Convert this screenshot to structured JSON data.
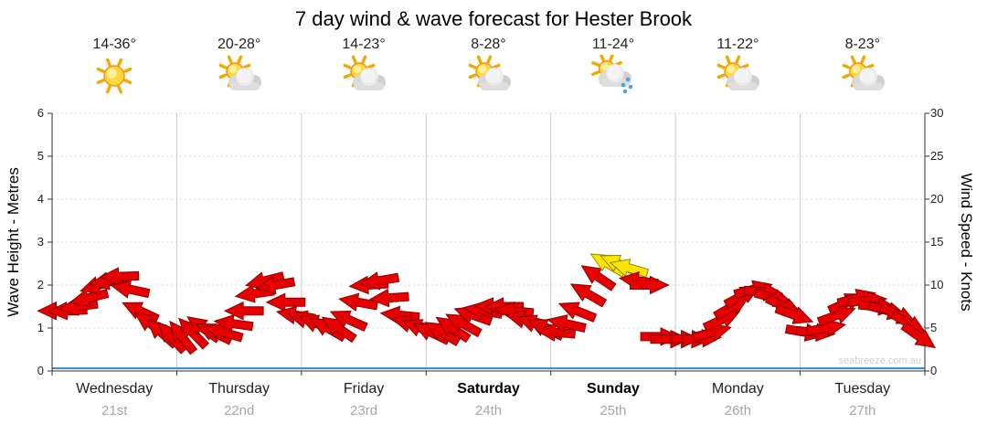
{
  "title": "7 day wind & wave forecast for Hester Brook",
  "watermark": "seabreeze.com.au",
  "axes": {
    "left_label": "Wave Height - Metres",
    "right_label": "Wind Speed - Knots",
    "left_ticks": [
      0,
      1,
      2,
      3,
      4,
      5,
      6
    ],
    "right_ticks": [
      0,
      5,
      10,
      15,
      20,
      25,
      30
    ]
  },
  "chart_data": {
    "type": "scatter",
    "marker": "wind-arrow",
    "title": "7 day wind & wave forecast for Hester Brook",
    "left_axis": {
      "label": "Wave Height - Metres",
      "range": [
        0,
        6
      ]
    },
    "right_axis": {
      "label": "Wind Speed - Knots",
      "range": [
        0,
        30
      ]
    },
    "days": [
      {
        "name": "Wednesday",
        "date": "21st",
        "temp": "14-36°",
        "icon": "sunny",
        "bold": false
      },
      {
        "name": "Thursday",
        "date": "22nd",
        "temp": "20-28°",
        "icon": "partly-cloudy",
        "bold": false
      },
      {
        "name": "Friday",
        "date": "23rd",
        "temp": "14-23°",
        "icon": "partly-cloudy",
        "bold": false
      },
      {
        "name": "Saturday",
        "date": "24th",
        "temp": "8-28°",
        "icon": "partly-cloudy",
        "bold": true
      },
      {
        "name": "Sunday",
        "date": "25th",
        "temp": "11-24°",
        "icon": "rain-showers",
        "bold": true
      },
      {
        "name": "Monday",
        "date": "26th",
        "temp": "11-22°",
        "icon": "partly-cloudy",
        "bold": false
      },
      {
        "name": "Tuesday",
        "date": "27th",
        "temp": "8-23°",
        "icon": "partly-cloudy",
        "bold": false
      }
    ],
    "wave_height_m": 0.06,
    "wave_color": "#3a86c8",
    "colors": {
      "light_wind": "#e60000",
      "light_wind_outline": "#8b0000",
      "moderate_wind": "#ffe400",
      "moderate_wind_outline": "#8b8b00",
      "temp_text": "#222222",
      "grid_vertical": "#cccccc",
      "grid_horizontal": "#dddddd",
      "axis": "#333333"
    },
    "wind_arrows_format": [
      "t_days",
      "knots",
      "rotation_deg",
      "color_key"
    ],
    "wind_arrows": [
      [
        0.04,
        7,
        180,
        "r"
      ],
      [
        0.125,
        7,
        177,
        "r"
      ],
      [
        0.21,
        7.5,
        172,
        "r"
      ],
      [
        0.295,
        8.5,
        166,
        "r"
      ],
      [
        0.375,
        10,
        162,
        "r"
      ],
      [
        0.455,
        10.5,
        168,
        "r"
      ],
      [
        0.54,
        11,
        178,
        "r"
      ],
      [
        0.625,
        9.5,
        192,
        "r"
      ],
      [
        0.705,
        7,
        205,
        "r"
      ],
      [
        0.79,
        5.5,
        215,
        "r"
      ],
      [
        0.875,
        4.5,
        222,
        "r"
      ],
      [
        0.955,
        4,
        228,
        "r"
      ],
      [
        1.04,
        4,
        232,
        "r"
      ],
      [
        1.125,
        4.5,
        226,
        "r"
      ],
      [
        1.21,
        5,
        216,
        "r"
      ],
      [
        1.295,
        4.5,
        206,
        "r"
      ],
      [
        1.375,
        4.5,
        196,
        "r"
      ],
      [
        1.455,
        5.5,
        188,
        "r"
      ],
      [
        1.54,
        7,
        180,
        "r"
      ],
      [
        1.625,
        9,
        172,
        "r"
      ],
      [
        1.705,
        10.5,
        166,
        "r"
      ],
      [
        1.79,
        10,
        170,
        "r"
      ],
      [
        1.875,
        8,
        180,
        "r"
      ],
      [
        1.955,
        6.5,
        190,
        "r"
      ],
      [
        2.04,
        6,
        196,
        "r"
      ],
      [
        2.125,
        5.5,
        202,
        "r"
      ],
      [
        2.21,
        5,
        210,
        "r"
      ],
      [
        2.295,
        5,
        214,
        "r"
      ],
      [
        2.375,
        6,
        204,
        "r"
      ],
      [
        2.455,
        8,
        190,
        "r"
      ],
      [
        2.54,
        10,
        176,
        "r"
      ],
      [
        2.625,
        10.5,
        170,
        "r"
      ],
      [
        2.705,
        8.5,
        176,
        "r"
      ],
      [
        2.79,
        6.5,
        186,
        "r"
      ],
      [
        2.875,
        5.5,
        196,
        "r"
      ],
      [
        2.955,
        5,
        202,
        "r"
      ],
      [
        3.04,
        4.5,
        206,
        "r"
      ],
      [
        3.125,
        4.5,
        211,
        "r"
      ],
      [
        3.21,
        5,
        214,
        "r"
      ],
      [
        3.295,
        5.5,
        209,
        "r"
      ],
      [
        3.375,
        6.5,
        199,
        "r"
      ],
      [
        3.455,
        7,
        190,
        "r"
      ],
      [
        3.54,
        7.5,
        184,
        "r"
      ],
      [
        3.625,
        7.5,
        180,
        "r"
      ],
      [
        3.705,
        7,
        186,
        "r"
      ],
      [
        3.79,
        6,
        194,
        "r"
      ],
      [
        3.875,
        5.5,
        200,
        "r"
      ],
      [
        3.955,
        5,
        206,
        "r"
      ],
      [
        4.04,
        4.5,
        185,
        "r"
      ],
      [
        4.125,
        5.5,
        193,
        "r"
      ],
      [
        4.21,
        7,
        202,
        "r"
      ],
      [
        4.295,
        9,
        210,
        "r"
      ],
      [
        4.375,
        11,
        214,
        "r"
      ],
      [
        4.455,
        12.5,
        210,
        "y"
      ],
      [
        4.54,
        12.5,
        204,
        "y"
      ],
      [
        4.625,
        12,
        196,
        "y"
      ],
      [
        4.705,
        10.5,
        188,
        "r"
      ],
      [
        4.79,
        10,
        0,
        "r"
      ],
      [
        4.875,
        4,
        0,
        "r"
      ],
      [
        4.955,
        3.7,
        0,
        "r"
      ],
      [
        5.04,
        3.7,
        0,
        "r"
      ],
      [
        5.125,
        3.7,
        2,
        "r"
      ],
      [
        5.21,
        3.8,
        357,
        "r"
      ],
      [
        5.295,
        4.5,
        345,
        "r"
      ],
      [
        5.375,
        6,
        335,
        "r"
      ],
      [
        5.455,
        7.5,
        330,
        "r"
      ],
      [
        5.54,
        8.8,
        332,
        "r"
      ],
      [
        5.625,
        9.5,
        345,
        "r"
      ],
      [
        5.705,
        9.2,
        5,
        "r"
      ],
      [
        5.79,
        8.5,
        15,
        "r"
      ],
      [
        5.875,
        7.5,
        25,
        "r"
      ],
      [
        5.955,
        6.5,
        20,
        "r"
      ],
      [
        6.04,
        4.5,
        10,
        "r"
      ],
      [
        6.125,
        4.5,
        5,
        "r"
      ],
      [
        6.21,
        5,
        350,
        "r"
      ],
      [
        6.295,
        6.5,
        340,
        "r"
      ],
      [
        6.375,
        8,
        335,
        "r"
      ],
      [
        6.455,
        8.5,
        345,
        "r"
      ],
      [
        6.54,
        8.2,
        355,
        "r"
      ],
      [
        6.625,
        7.5,
        5,
        "r"
      ],
      [
        6.705,
        7,
        15,
        "r"
      ],
      [
        6.79,
        6.5,
        25,
        "r"
      ],
      [
        6.875,
        5.5,
        30,
        "r"
      ],
      [
        6.955,
        4,
        35,
        "r"
      ]
    ]
  }
}
